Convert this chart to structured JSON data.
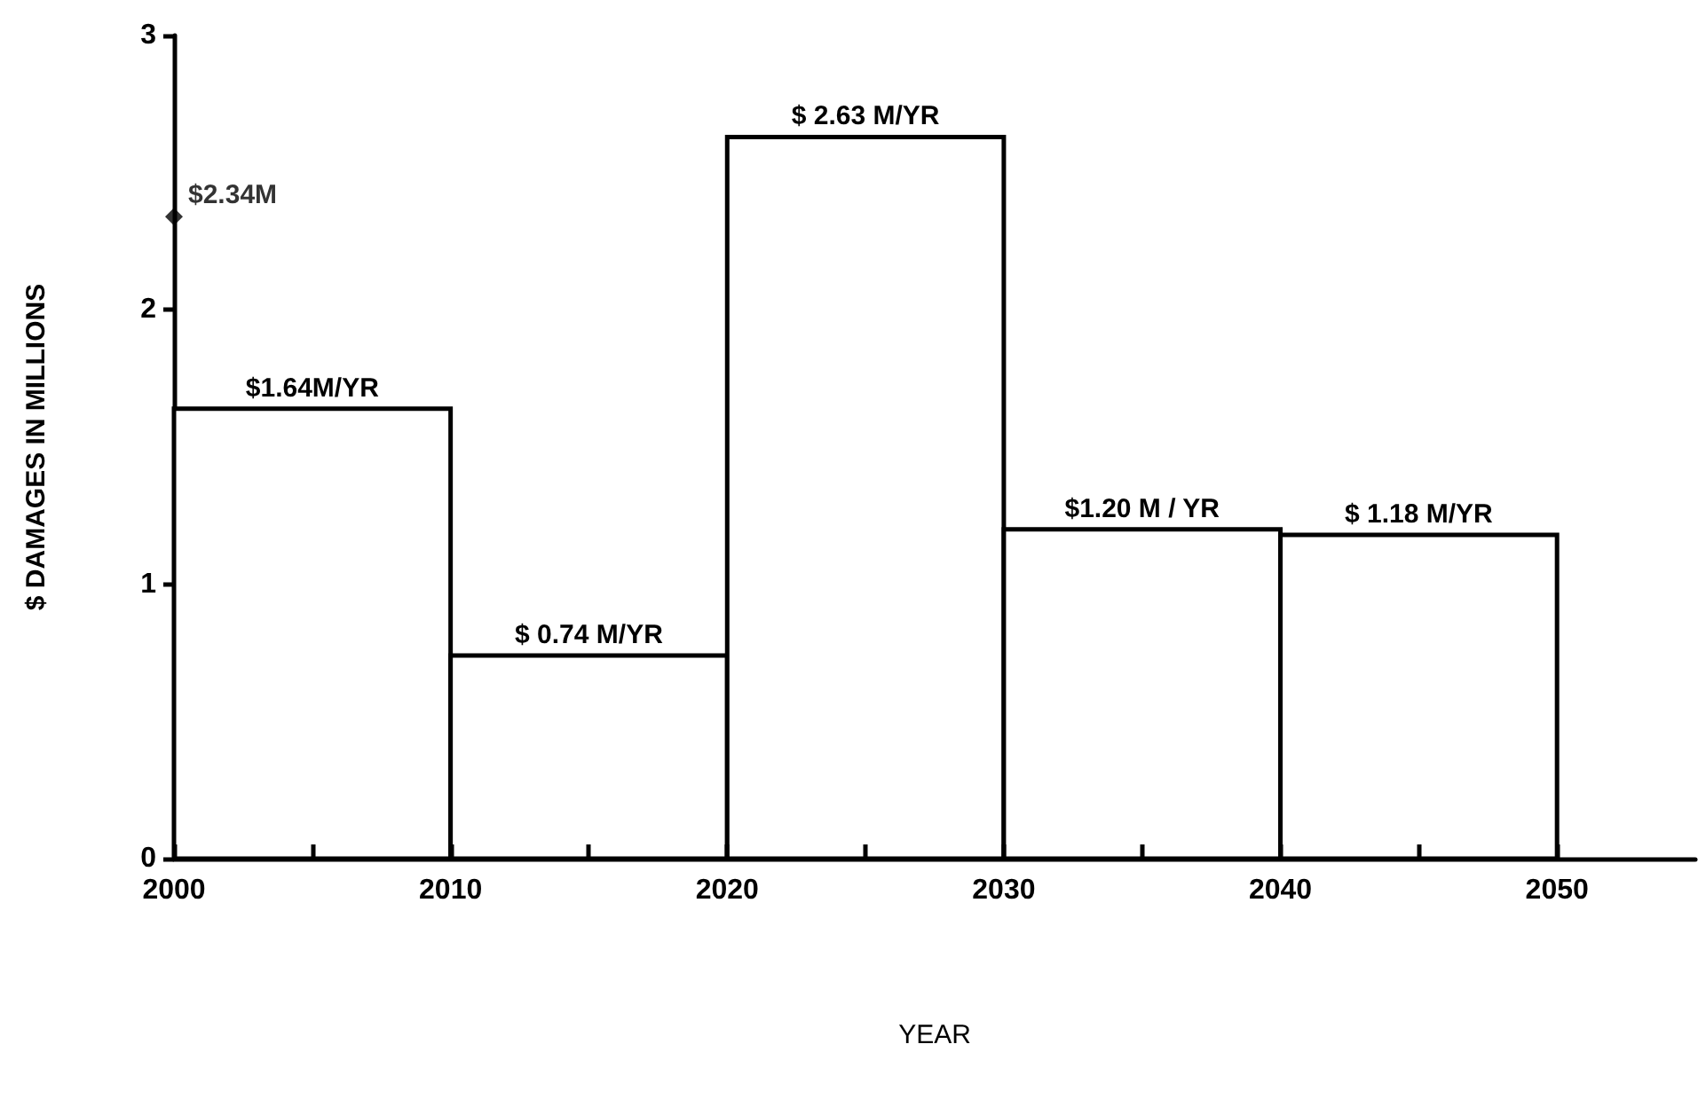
{
  "chart_data": {
    "type": "histogram",
    "xlabel": "YEAR",
    "ylabel": "$ DAMAGES IN MILLIONS",
    "xlim": [
      2000,
      2055
    ],
    "xticks": [
      2000,
      {
        "value": 2005,
        "label": null
      },
      2010,
      {
        "value": 2015,
        "label": null
      },
      2020,
      {
        "value": 2025,
        "label": null
      },
      2030,
      {
        "value": 2035,
        "label": null
      },
      2040,
      {
        "value": 2045,
        "label": null
      },
      2050
    ],
    "ylim": [
      0,
      3
    ],
    "yticks": [
      0,
      1,
      2,
      3
    ],
    "grid": false,
    "series": [
      {
        "color": "#ffffff",
        "bins": [
          2000,
          2010,
          2020,
          2030,
          2040,
          2050
        ],
        "values": [
          1.64,
          0.74,
          2.63,
          1.2,
          1.18
        ],
        "value_labels": [
          "$1.64M/YR",
          "$ 0.74 M/YR",
          "$ 2.63 M/YR",
          "$1.20 M / YR",
          "$ 1.18 M/YR"
        ]
      },
      {
        "type": "scatter",
        "color": "#000000",
        "marker": "diamond",
        "x": [
          2000
        ],
        "values": [
          2.34
        ],
        "value_labels": [
          "$2.34M"
        ]
      }
    ]
  }
}
